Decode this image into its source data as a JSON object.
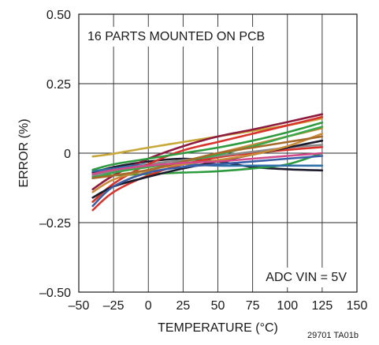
{
  "chart_data": {
    "type": "line",
    "title": "",
    "xlabel": "TEMPERATURE (°C)",
    "ylabel": "ERROR (%)",
    "xlim": [
      -50,
      150
    ],
    "ylim": [
      -0.5,
      0.5
    ],
    "x_tick_values": [
      -50,
      -25,
      0,
      25,
      50,
      75,
      100,
      125,
      150
    ],
    "x_tick_labels": [
      "–50",
      "–25",
      "0",
      "25",
      "50",
      "75",
      "100",
      "125",
      "150"
    ],
    "y_tick_values": [
      -0.5,
      -0.25,
      0,
      0.25,
      0.5
    ],
    "y_tick_labels": [
      "–0.50",
      "–0.25",
      "0",
      "0.25",
      "0.50"
    ],
    "grid": true,
    "annotations": {
      "top_left": "16 PARTS MOUNTED ON PCB",
      "bottom_right": "ADC VIN = 5V"
    },
    "footnote": "29701 TA01b",
    "x": [
      -40,
      -25,
      0,
      25,
      50,
      75,
      100,
      125
    ],
    "series": [
      {
        "color": "#c9a83a",
        "values": [
          -0.012,
          -0.002,
          0.02,
          0.04,
          0.06,
          0.08,
          0.1,
          0.125
        ]
      },
      {
        "color": "#1c1c2e",
        "values": [
          -0.07,
          -0.05,
          -0.03,
          -0.02,
          -0.03,
          -0.05,
          -0.058,
          -0.062
        ]
      },
      {
        "color": "#2e9b3f",
        "values": [
          -0.085,
          -0.08,
          -0.075,
          -0.07,
          -0.065,
          -0.055,
          -0.04,
          0.0
        ]
      },
      {
        "color": "#8e1b3e",
        "values": [
          -0.13,
          -0.08,
          -0.02,
          0.025,
          0.06,
          0.085,
          0.112,
          0.14
        ]
      },
      {
        "color": "#d9342b",
        "values": [
          -0.205,
          -0.14,
          -0.08,
          -0.04,
          -0.015,
          0.0,
          0.012,
          0.022
        ]
      },
      {
        "color": "#2f6fa8",
        "values": [
          -0.065,
          -0.055,
          -0.04,
          -0.04,
          -0.045,
          -0.045,
          -0.045,
          -0.045
        ]
      },
      {
        "color": "#8a8a8a",
        "values": [
          -0.08,
          -0.065,
          -0.04,
          -0.025,
          -0.01,
          0.005,
          0.02,
          0.03
        ]
      },
      {
        "color": "#c98a3a",
        "values": [
          -0.175,
          -0.12,
          -0.065,
          -0.03,
          0.0,
          0.03,
          0.06,
          0.09
        ]
      },
      {
        "color": "#d9342b",
        "values": [
          -0.175,
          -0.11,
          -0.04,
          0.01,
          0.04,
          0.07,
          0.1,
          0.13
        ]
      },
      {
        "color": "#2e9b3f",
        "values": [
          -0.06,
          -0.04,
          -0.02,
          0.0,
          0.02,
          0.045,
          0.075,
          0.11
        ]
      },
      {
        "color": "#3aa84a",
        "values": [
          -0.09,
          -0.07,
          -0.05,
          -0.03,
          -0.005,
          0.025,
          0.06,
          0.095
        ]
      },
      {
        "color": "#1c1c2e",
        "values": [
          -0.16,
          -0.12,
          -0.085,
          -0.055,
          -0.03,
          -0.005,
          0.02,
          0.045
        ]
      },
      {
        "color": "#3a5fa8",
        "values": [
          -0.19,
          -0.12,
          -0.07,
          -0.05,
          -0.04,
          -0.03,
          -0.02,
          -0.01
        ]
      },
      {
        "color": "#c98a3a",
        "values": [
          -0.14,
          -0.095,
          -0.06,
          -0.04,
          -0.025,
          -0.005,
          0.025,
          0.07
        ]
      },
      {
        "color": "#a66a2a",
        "values": [
          -0.09,
          -0.08,
          -0.06,
          -0.03,
          0.0,
          0.02,
          0.04,
          0.06
        ]
      },
      {
        "color": "#d14a8a",
        "values": [
          -0.075,
          -0.06,
          -0.045,
          -0.035,
          -0.03,
          -0.02,
          -0.01,
          0.0
        ]
      }
    ]
  }
}
